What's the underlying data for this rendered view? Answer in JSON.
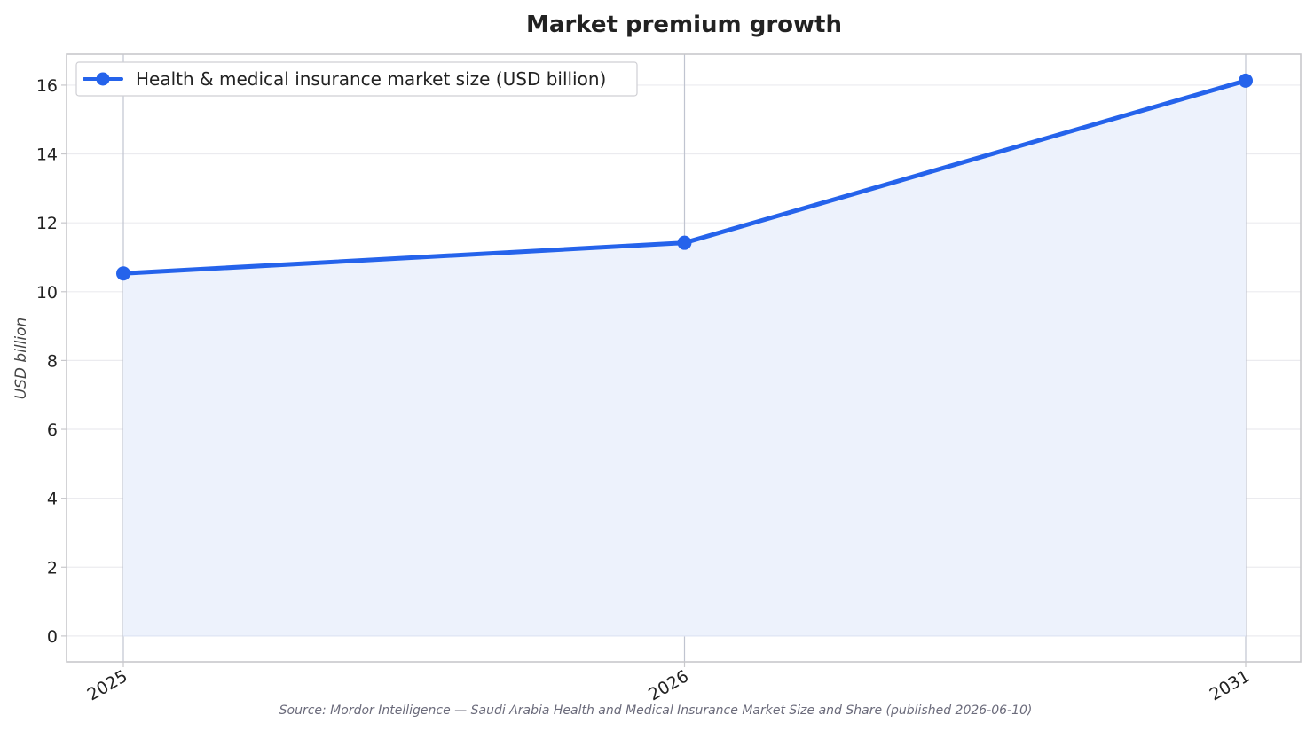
{
  "chart_data": {
    "type": "area",
    "title": "Market premium growth",
    "xlabel": "",
    "ylabel": "USD billion",
    "categories": [
      "2025",
      "2026",
      "2031"
    ],
    "x": [
      2025,
      2026,
      2031
    ],
    "series": [
      {
        "name": "Health & medical insurance market size (USD billion)",
        "values": [
          10.53,
          11.42,
          16.13
        ],
        "color": "#2563eb",
        "fill_color": "#edf2fc"
      }
    ],
    "x_axis_type": "categorical",
    "ylim": [
      -0.75,
      16.9
    ],
    "yticks": [
      0,
      2,
      4,
      6,
      8,
      10,
      12,
      14,
      16
    ],
    "grid": true,
    "legend_position": "top-left",
    "source": "Source: Mordor Intelligence — Saudi Arabia Health and Medical Insurance Market Size and Share (published 2026-06-10)",
    "colors": {
      "axis": "#c8c8cc",
      "grid": "#ebebef",
      "vgrid": "#c0c4d0"
    }
  }
}
